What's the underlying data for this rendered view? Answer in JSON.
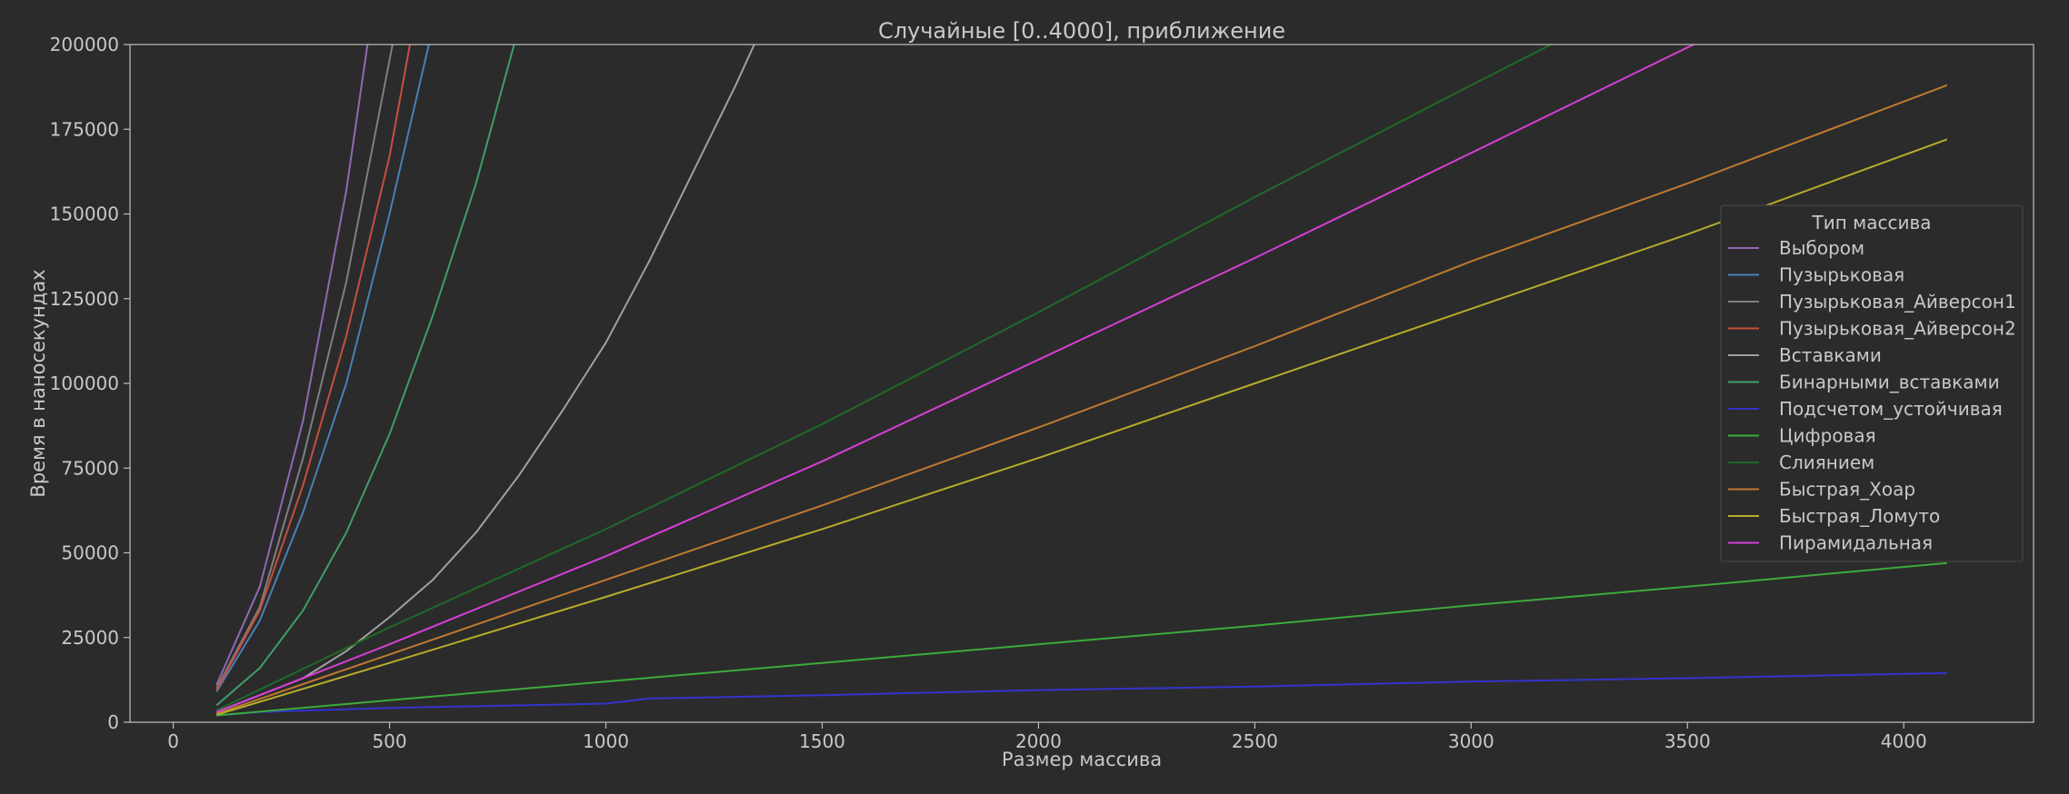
{
  "chart_data": {
    "type": "line",
    "title": "Случайные [0..4000], приближение",
    "xlabel": "Размер массива",
    "ylabel": "Время в наносекундах",
    "xlim": [
      -100,
      4300
    ],
    "ylim": [
      0,
      200000
    ],
    "xticks": [
      "0",
      "500",
      "1000",
      "1500",
      "2000",
      "2500",
      "3000",
      "3500",
      "4000"
    ],
    "yticks": [
      "0",
      "25000",
      "50000",
      "75000",
      "100000",
      "125000",
      "150000",
      "175000",
      "200000"
    ],
    "grid": false,
    "legend_title": "Тип массива",
    "legend_position": "right",
    "series": [
      {
        "name": "Выбором",
        "color": "#8c6bb1",
        "x": [
          100,
          200,
          300,
          400,
          450
        ],
        "y": [
          11000,
          40000,
          89000,
          157000,
          201000
        ]
      },
      {
        "name": "Пузырьковая",
        "color": "#4b7fb5",
        "x": [
          100,
          200,
          300,
          400,
          500,
          600
        ],
        "y": [
          9000,
          30000,
          62000,
          100000,
          150000,
          205000
        ]
      },
      {
        "name": "Пузырьковая_Айверсон1",
        "color": "#7f7f7f",
        "x": [
          100,
          200,
          300,
          400,
          510
        ],
        "y": [
          10000,
          34000,
          78000,
          130000,
          202000
        ]
      },
      {
        "name": "Пузырьковая_Айверсон2",
        "color": "#c64f3f",
        "x": [
          100,
          200,
          300,
          400,
          500,
          550
        ],
        "y": [
          9500,
          33000,
          70000,
          114000,
          167000,
          202000
        ]
      },
      {
        "name": "Вставками",
        "color": "#a0a0a0",
        "x": [
          100,
          200,
          300,
          400,
          500,
          600,
          700,
          800,
          900,
          1000,
          1100,
          1200,
          1300,
          1350
        ],
        "y": [
          3000,
          8000,
          13000,
          21000,
          31000,
          42000,
          56000,
          73000,
          92000,
          112000,
          136000,
          162000,
          188000,
          202000
        ]
      },
      {
        "name": "Бинарными_вставками",
        "color": "#3f9d6a",
        "x": [
          100,
          200,
          300,
          400,
          500,
          600,
          700,
          790
        ],
        "y": [
          5000,
          16000,
          33000,
          56000,
          85000,
          120000,
          159000,
          201000
        ]
      },
      {
        "name": "Подсчетом_устойчивая",
        "color": "#3333cc",
        "x": [
          100,
          200,
          500,
          1000,
          1100,
          1500,
          2000,
          2500,
          3000,
          3500,
          4100
        ],
        "y": [
          2000,
          3000,
          4200,
          5500,
          7000,
          8000,
          9500,
          10500,
          12000,
          13000,
          14500
        ]
      },
      {
        "name": "Цифровая",
        "color": "#3daa3d",
        "x": [
          100,
          500,
          1000,
          1500,
          2000,
          2500,
          3000,
          3500,
          4100
        ],
        "y": [
          2000,
          6500,
          12000,
          17500,
          23000,
          28500,
          34500,
          40000,
          47000
        ]
      },
      {
        "name": "Слиянием",
        "color": "#1e6a2a",
        "x": [
          100,
          500,
          1000,
          1500,
          2000,
          2500,
          3000,
          3200
        ],
        "y": [
          3500,
          28000,
          57000,
          88000,
          121000,
          155000,
          188000,
          201000
        ]
      },
      {
        "name": "Быстрая_Хоар",
        "color": "#c07a30",
        "x": [
          100,
          500,
          1000,
          1500,
          2000,
          2500,
          3000,
          3500,
          4100
        ],
        "y": [
          2500,
          20000,
          42000,
          64000,
          87000,
          111000,
          136000,
          159000,
          188000
        ]
      },
      {
        "name": "Быстрая_Ломуто",
        "color": "#b5ad2a",
        "x": [
          100,
          500,
          1000,
          1500,
          2000,
          2500,
          3000,
          3500,
          4100
        ],
        "y": [
          2200,
          17500,
          37000,
          57000,
          78000,
          100000,
          122000,
          144000,
          172000
        ]
      },
      {
        "name": "Пирамидальная",
        "color": "#d63fd6",
        "x": [
          100,
          500,
          1000,
          1500,
          2000,
          2500,
          3000,
          3530
        ],
        "y": [
          3000,
          23000,
          49000,
          77000,
          107000,
          137000,
          168000,
          201000
        ]
      }
    ]
  }
}
